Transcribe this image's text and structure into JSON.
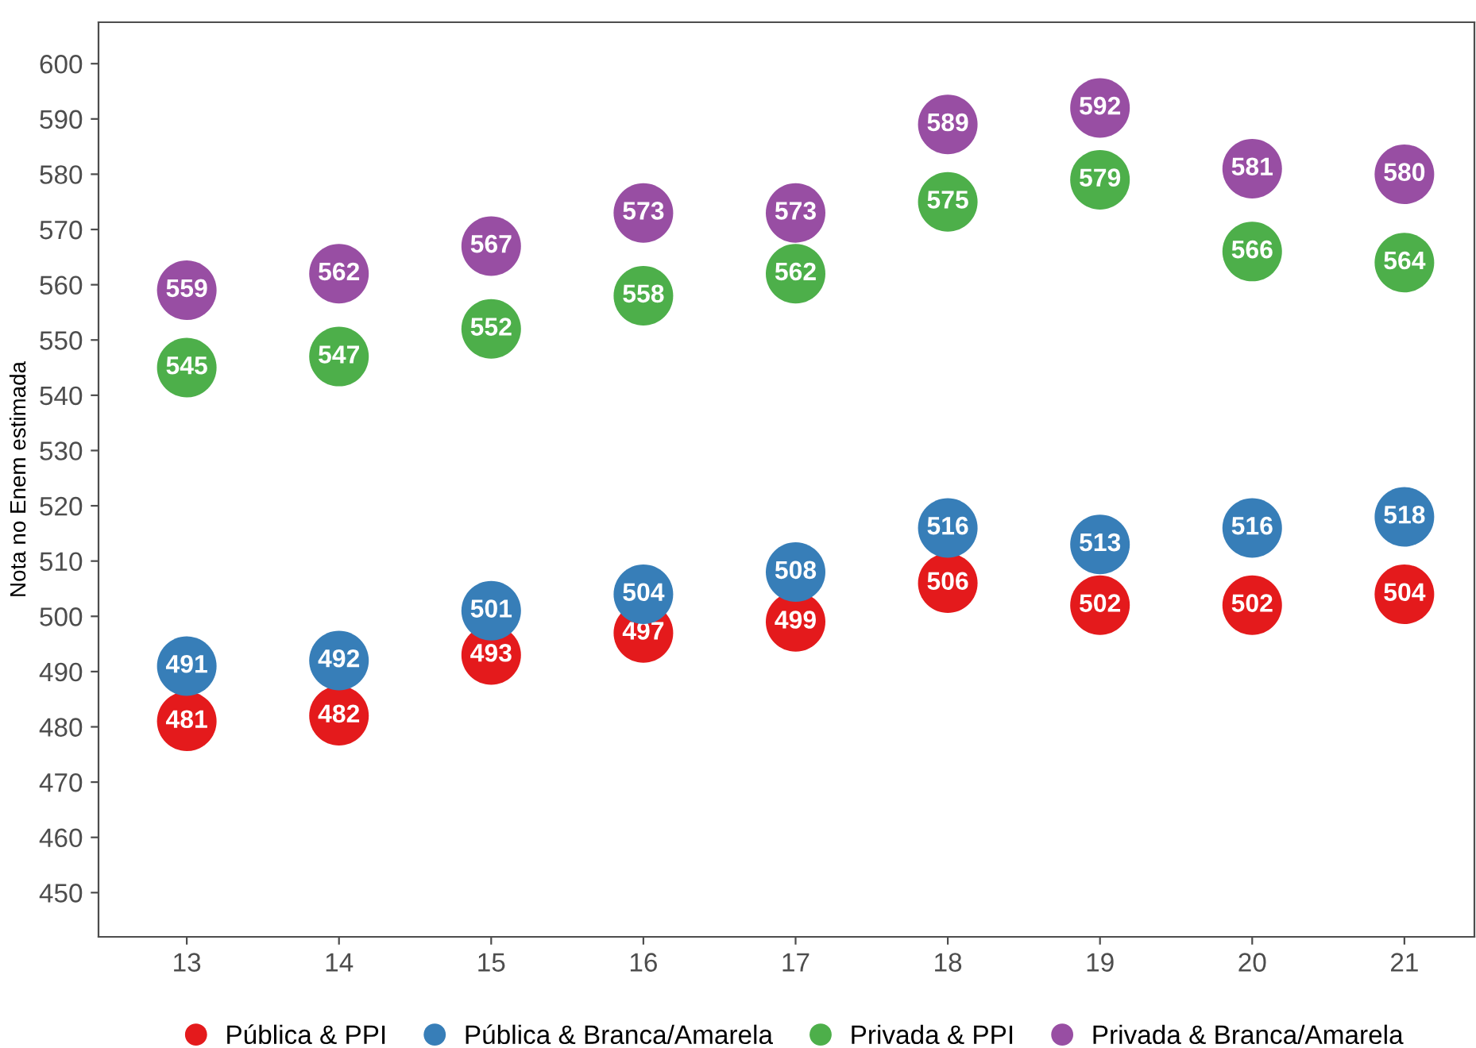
{
  "chart_data": {
    "type": "scatter",
    "ylabel": "Nota no Enem estimada",
    "categories": [
      "13",
      "14",
      "15",
      "16",
      "17",
      "18",
      "19",
      "20",
      "21"
    ],
    "series": [
      {
        "name": "Pública & PPI",
        "color": "#e41a1c",
        "values": [
          481,
          482,
          493,
          497,
          499,
          506,
          502,
          502,
          504
        ]
      },
      {
        "name": "Pública & Branca/Amarela",
        "color": "#377eb8",
        "values": [
          491,
          492,
          501,
          504,
          508,
          516,
          513,
          516,
          518
        ]
      },
      {
        "name": "Privada & PPI",
        "color": "#4daf4a",
        "values": [
          545,
          547,
          552,
          558,
          562,
          575,
          579,
          566,
          564
        ]
      },
      {
        "name": "Privada & Branca/Amarela",
        "color": "#984ea3",
        "values": [
          559,
          562,
          567,
          573,
          573,
          589,
          592,
          581,
          580
        ]
      }
    ],
    "ylim": [
      442,
      607.5
    ],
    "yticks": [
      450,
      460,
      470,
      480,
      490,
      500,
      510,
      520,
      530,
      540,
      550,
      560,
      570,
      580,
      590,
      600
    ],
    "grid": false,
    "legend": "bottom",
    "marker": "circle",
    "data_labels": true
  }
}
